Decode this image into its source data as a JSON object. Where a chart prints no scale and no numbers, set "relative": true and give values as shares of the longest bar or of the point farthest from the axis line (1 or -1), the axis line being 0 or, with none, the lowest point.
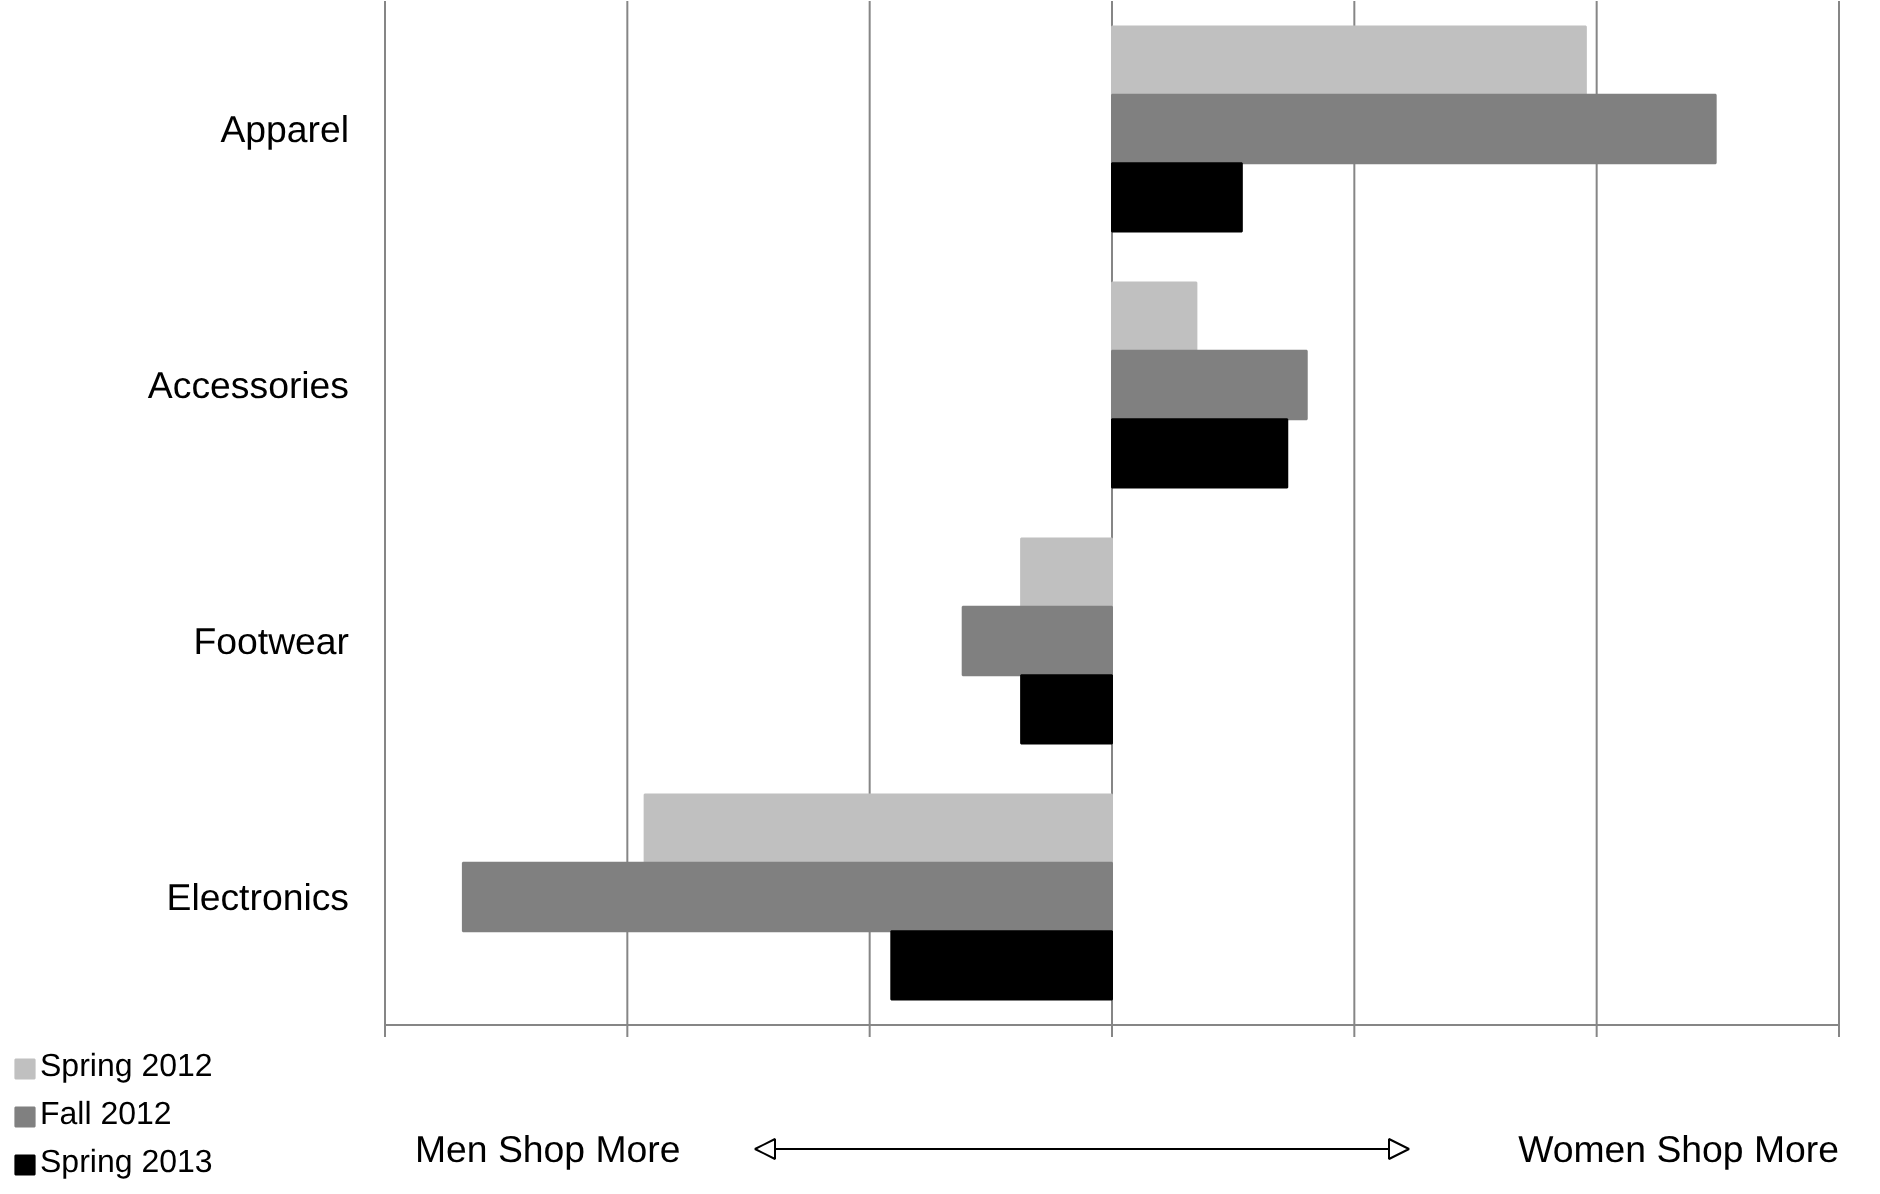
{
  "chart_data": {
    "type": "bar",
    "orientation": "horizontal",
    "relative": true,
    "grid": "x",
    "legend": "bottom left",
    "categories": [
      "Apparel",
      "Accessories",
      "Footwear",
      "Electronics"
    ],
    "series": [
      {
        "name": "Spring 2012",
        "color": "#c0c0c0",
        "values": [
          0.73,
          0.13,
          -0.14,
          -0.72
        ]
      },
      {
        "name": "Fall 2012",
        "color": "#808080",
        "values": [
          0.93,
          0.3,
          -0.23,
          -1
        ]
      },
      {
        "name": "Spring 2013",
        "color": "#000000",
        "values": [
          0.2,
          0.27,
          -0.14,
          -0.34
        ]
      }
    ],
    "annotations": [
      "Men Shop More",
      "Women Shop More"
    ]
  }
}
